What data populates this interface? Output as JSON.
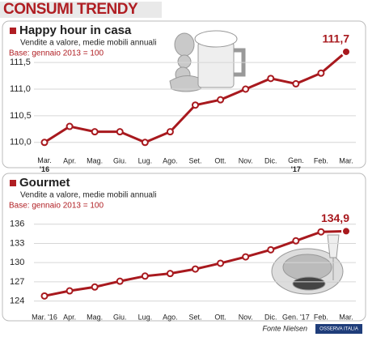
{
  "title": "CONSUMI TRENDY",
  "source": "Fonte Nielsen",
  "logo": "OSSERVA ITALIA",
  "chart_data": [
    {
      "type": "line",
      "title": "Happy hour in casa",
      "subtitle": "Vendite a valore, medie mobili annuali",
      "base": "Base: gennaio 2013 = 100",
      "categories": [
        "Mar. '16",
        "Apr.",
        "Mag.",
        "Giu.",
        "Lug.",
        "Ago.",
        "Set.",
        "Ott.",
        "Nov.",
        "Dic.",
        "Gen. '17",
        "Feb.",
        "Mar."
      ],
      "stacked_years": true,
      "series": [
        {
          "name": "Happy hour in casa",
          "color": "#a8191e",
          "values": [
            110.0,
            110.3,
            110.2,
            110.2,
            110.0,
            110.2,
            110.7,
            110.8,
            111.0,
            111.2,
            111.1,
            111.3,
            111.7
          ],
          "value_labels": [
            null,
            null,
            null,
            null,
            null,
            null,
            null,
            null,
            null,
            null,
            null,
            null,
            "111,7"
          ]
        }
      ],
      "ylim": [
        109.86,
        111.76
      ],
      "yticks": [
        {
          "value": 110,
          "label": "110,0"
        },
        {
          "value": 110.5,
          "label": "110,5"
        },
        {
          "value": 111,
          "label": "111,0"
        },
        {
          "value": 111.5,
          "label": "111,5"
        }
      ],
      "grid": true
    },
    {
      "type": "line",
      "title": "Gourmet",
      "subtitle": "Vendite a valore, medie mobili annuali",
      "base": "Base: gennaio 2013 = 100",
      "categories": [
        "Mar. '16",
        "Apr.",
        "Mag.",
        "Giu.",
        "Lug.",
        "Ago.",
        "Set.",
        "Ott.",
        "Nov.",
        "Dic.",
        "Gen. '17",
        "Feb.",
        "Mar."
      ],
      "stacked_years": false,
      "series": [
        {
          "name": "Gourmet",
          "color": "#a8191e",
          "values": [
            124.8,
            125.6,
            126.2,
            127.1,
            127.9,
            128.3,
            129.0,
            129.9,
            130.9,
            132.0,
            133.4,
            134.8,
            134.9
          ],
          "value_labels": [
            null,
            null,
            null,
            null,
            null,
            null,
            null,
            null,
            null,
            null,
            null,
            null,
            "134,9"
          ]
        }
      ],
      "ylim": [
        123.2,
        137.1
      ],
      "yticks": [
        124,
        127,
        130,
        133,
        136
      ],
      "grid": true
    }
  ]
}
